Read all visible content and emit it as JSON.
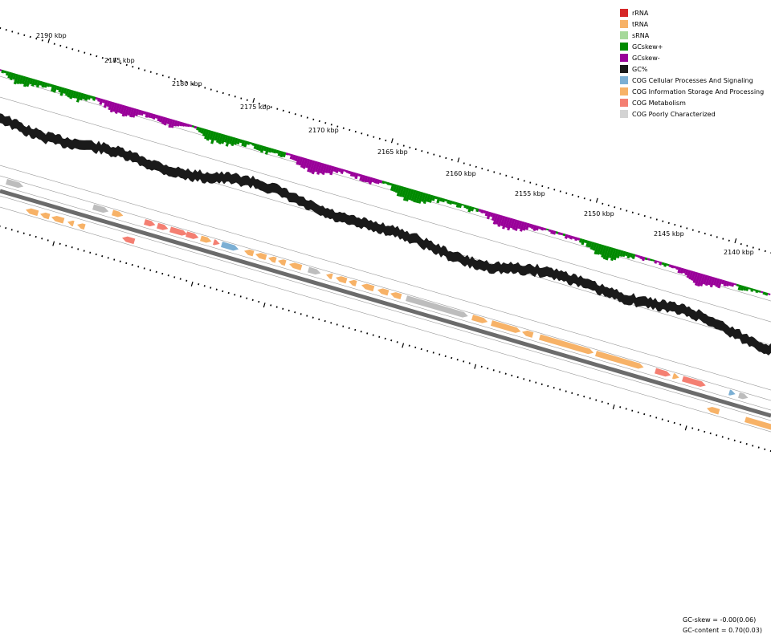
{
  "legend": [
    {
      "label": "rRNA",
      "color": "#d62728"
    },
    {
      "label": "tRNA",
      "color": "#f7b267"
    },
    {
      "label": "sRNA",
      "color": "#a6d99a"
    },
    {
      "label": "GCskew+",
      "color": "#008a00"
    },
    {
      "label": "GCskew-",
      "color": "#990099"
    },
    {
      "label": "GC%",
      "color": "#1a1a1a"
    },
    {
      "label": "COG Cellular Processes And Signaling",
      "color": "#7bafd4"
    },
    {
      "label": "COG Information Storage And Processing",
      "color": "#f7b267"
    },
    {
      "label": "COG Metabolism",
      "color": "#f47f72"
    },
    {
      "label": "COG Poorly Characterized",
      "color": "#d3d3d3"
    }
  ],
  "scale_labels": [
    "2190 kbp",
    "2185 kbp",
    "2180 kbp",
    "2175 kbp",
    "2170 kbp",
    "2165 kbp",
    "2160 kbp",
    "2155 kbp",
    "2150 kbp",
    "2145 kbp",
    "2140 kbp"
  ],
  "stats": {
    "gc_skew": "GC-skew = -0.00(0.06)",
    "gc_content": "GC-content = 0.70(0.03)"
  }
}
